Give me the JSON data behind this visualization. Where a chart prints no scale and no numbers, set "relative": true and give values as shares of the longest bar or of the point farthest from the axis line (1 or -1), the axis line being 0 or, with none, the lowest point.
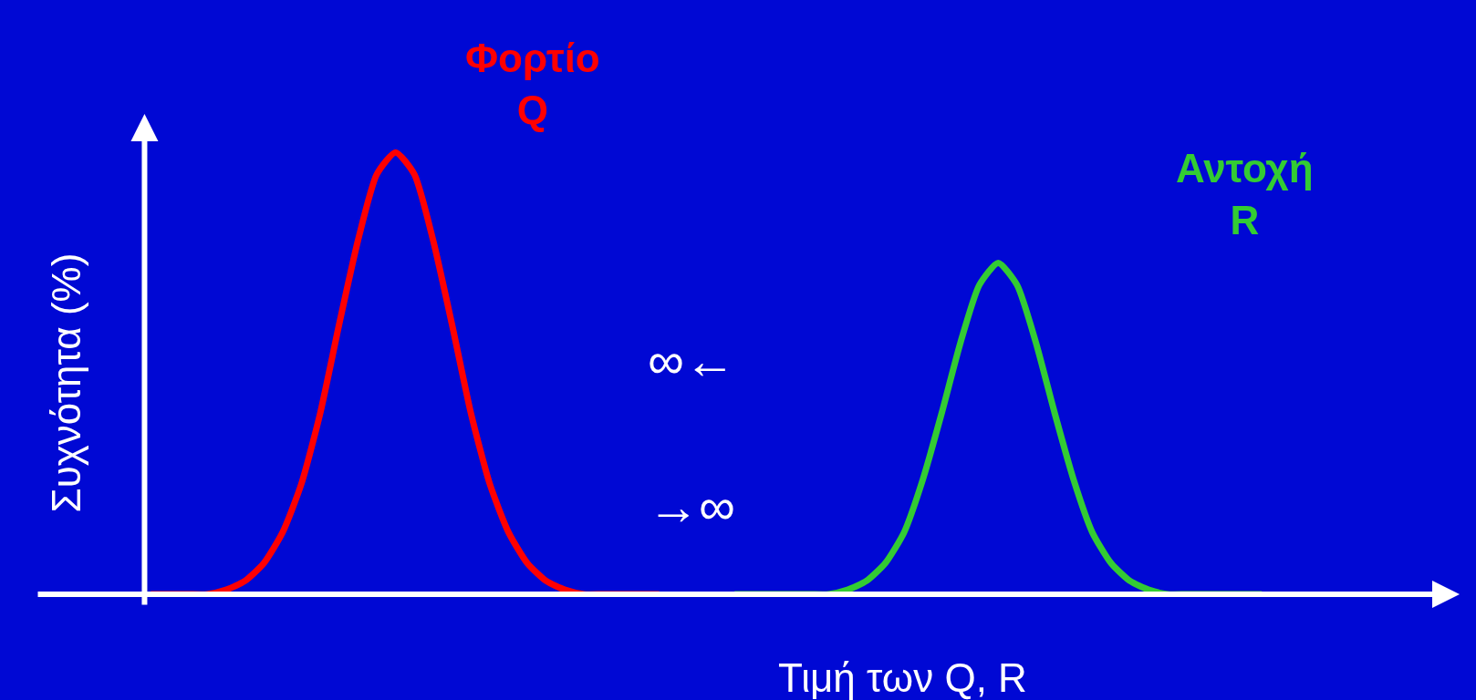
{
  "chart_data": {
    "type": "line",
    "relative": true,
    "xlabel": "Τιμή των Q, R",
    "ylabel": "Συχνότητα (%)",
    "categories": [
      null,
      null,
      null,
      null,
      null,
      null,
      null,
      null,
      null,
      null,
      null,
      null,
      null,
      null,
      null,
      null,
      null,
      null,
      null,
      null,
      null,
      null,
      null,
      null,
      null,
      null,
      null,
      null,
      null,
      null,
      null,
      null,
      null,
      null,
      null,
      null,
      null,
      null,
      null,
      null,
      null,
      null,
      null,
      null,
      null,
      null,
      null,
      null,
      null,
      null,
      null,
      null,
      null,
      null,
      null,
      null,
      null,
      null,
      null,
      null
    ],
    "series": [
      {
        "name": "Φορτίο\nQ",
        "color": "#ff0000",
        "values": [
          0,
          0,
          0,
          0,
          0.01,
          0.03,
          0.07,
          0.14,
          0.25,
          0.41,
          0.61,
          0.8,
          0.95,
          1,
          0.95,
          0.8,
          0.61,
          0.41,
          0.25,
          0.14,
          0.07,
          0.03,
          0.01,
          0,
          0,
          0,
          0,
          0,
          null,
          null,
          null,
          null,
          null,
          null,
          null,
          null,
          null,
          null,
          null,
          null,
          null,
          null,
          null,
          null,
          null,
          null,
          null,
          null,
          null,
          null,
          null,
          null,
          null,
          null,
          null,
          null,
          null,
          null,
          null,
          null
        ]
      },
      {
        "name": "Αντοχή\nR",
        "color": "#33cc33",
        "values": [
          null,
          null,
          null,
          null,
          null,
          null,
          null,
          null,
          null,
          null,
          null,
          null,
          null,
          null,
          null,
          null,
          null,
          null,
          null,
          null,
          null,
          null,
          null,
          null,
          null,
          null,
          null,
          null,
          null,
          null,
          null,
          0,
          0,
          0,
          0,
          0,
          0,
          0.01,
          0.03,
          0.07,
          0.14,
          0.26,
          0.41,
          0.57,
          0.7,
          0.75,
          0.7,
          0.57,
          0.41,
          0.26,
          0.14,
          0.07,
          0.03,
          0.01,
          0,
          0,
          0,
          0,
          0,
          0
        ]
      }
    ],
    "annotations": [
      "∞←",
      "→∞"
    ],
    "legend": false,
    "marker": "none",
    "line_style": "solid"
  }
}
